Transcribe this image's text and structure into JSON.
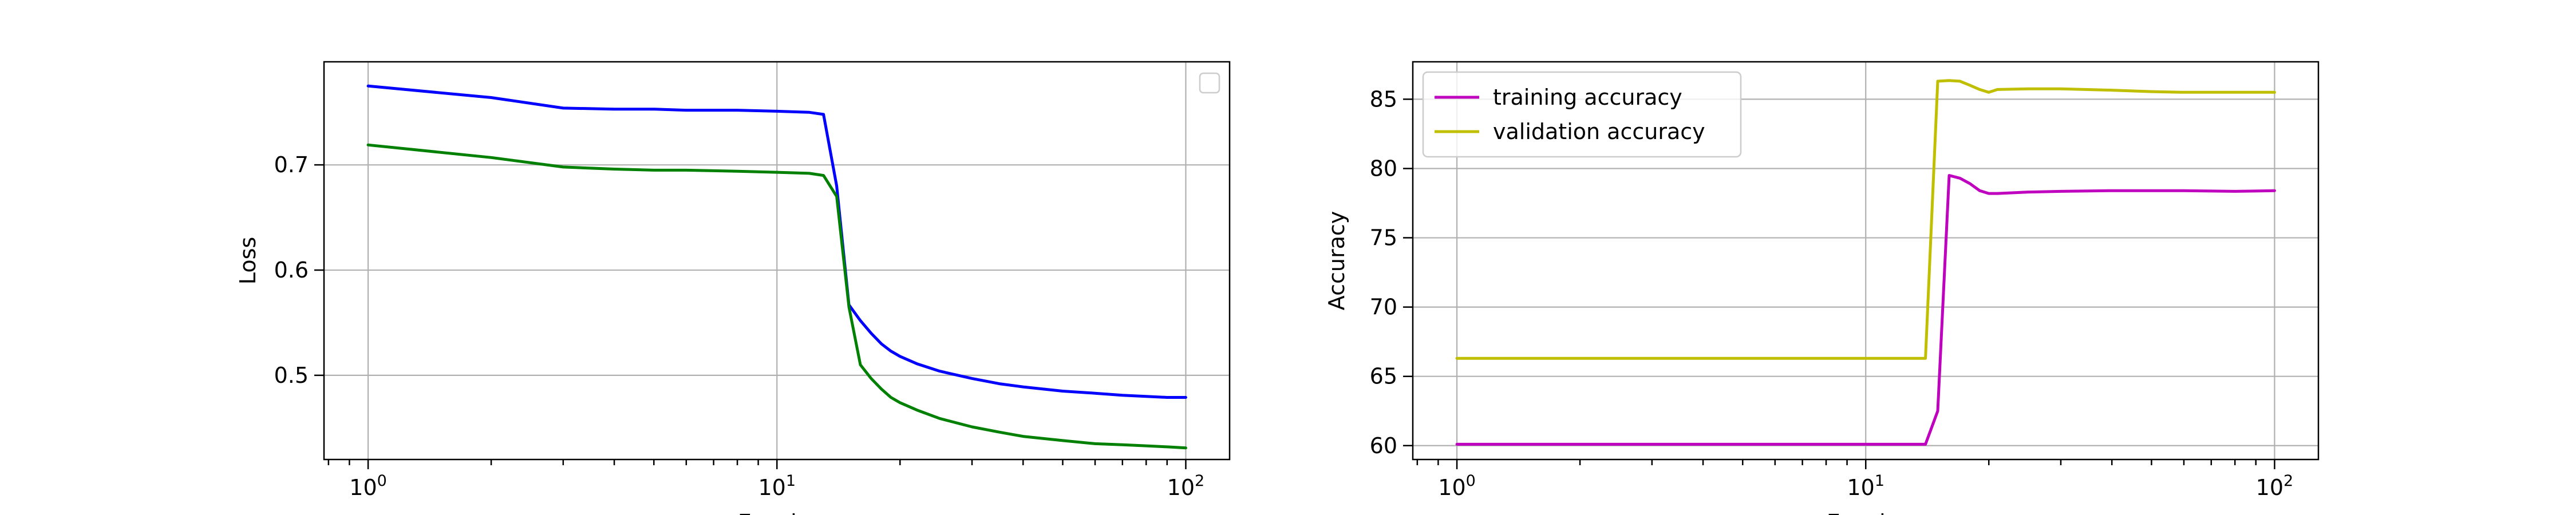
{
  "chart_data": [
    {
      "type": "line",
      "xscale": "log",
      "xlim": [
        0.78,
        128
      ],
      "ylim": [
        0.42,
        0.798
      ],
      "xticks": [
        1,
        10,
        100
      ],
      "xtick_labels": [
        {
          "base": "10",
          "exp": "0"
        },
        {
          "base": "10",
          "exp": "1"
        },
        {
          "base": "10",
          "exp": "2"
        }
      ],
      "yticks": [
        0.5,
        0.6,
        0.7
      ],
      "ytick_labels": [
        "0.5",
        "0.6",
        "0.7"
      ],
      "xlabel": "Epochs",
      "ylabel": "Loss",
      "grid": true,
      "legend": {
        "location": "upper right",
        "entries": []
      },
      "series": [
        {
          "color": "#0000ff",
          "x": [
            1,
            2,
            3,
            4,
            5,
            6,
            8,
            10,
            12,
            13,
            14,
            15,
            16,
            17,
            18,
            19,
            20,
            22,
            25,
            30,
            35,
            40,
            50,
            60,
            70,
            80,
            90,
            100
          ],
          "y": [
            0.775,
            0.764,
            0.754,
            0.753,
            0.753,
            0.752,
            0.752,
            0.751,
            0.75,
            0.748,
            0.68,
            0.567,
            0.552,
            0.54,
            0.53,
            0.523,
            0.518,
            0.511,
            0.504,
            0.497,
            0.492,
            0.489,
            0.485,
            0.483,
            0.481,
            0.48,
            0.479,
            0.479
          ]
        },
        {
          "color": "#008000",
          "x": [
            1,
            2,
            3,
            4,
            5,
            6,
            8,
            10,
            12,
            13,
            14,
            15,
            16,
            17,
            18,
            19,
            20,
            22,
            25,
            30,
            35,
            40,
            50,
            60,
            70,
            80,
            90,
            100
          ],
          "y": [
            0.719,
            0.707,
            0.698,
            0.696,
            0.695,
            0.695,
            0.694,
            0.693,
            0.692,
            0.69,
            0.67,
            0.565,
            0.51,
            0.497,
            0.487,
            0.479,
            0.474,
            0.467,
            0.459,
            0.451,
            0.446,
            0.442,
            0.438,
            0.435,
            0.434,
            0.433,
            0.432,
            0.431
          ]
        }
      ]
    },
    {
      "type": "line",
      "xscale": "log",
      "xlim": [
        0.78,
        128
      ],
      "ylim": [
        59.0,
        87.7
      ],
      "xticks": [
        1,
        10,
        100
      ],
      "xtick_labels": [
        {
          "base": "10",
          "exp": "0"
        },
        {
          "base": "10",
          "exp": "1"
        },
        {
          "base": "10",
          "exp": "2"
        }
      ],
      "yticks": [
        60,
        65,
        70,
        75,
        80,
        85
      ],
      "ytick_labels": [
        "60",
        "65",
        "70",
        "75",
        "80",
        "85"
      ],
      "xlabel": "Epochs",
      "ylabel": "Accuracy",
      "grid": true,
      "legend": {
        "location": "upper left",
        "entries": [
          {
            "label": "training accuracy",
            "color": "#bf00bf"
          },
          {
            "label": "validation accuracy",
            "color": "#bfbf00"
          }
        ]
      },
      "series": [
        {
          "name": "training accuracy",
          "color": "#bf00bf",
          "x": [
            1,
            2,
            5,
            10,
            14,
            15,
            16,
            17,
            18,
            19,
            20,
            21,
            25,
            30,
            40,
            50,
            60,
            80,
            100
          ],
          "y": [
            60.1,
            60.1,
            60.1,
            60.1,
            60.1,
            62.5,
            79.5,
            79.3,
            78.9,
            78.4,
            78.2,
            78.2,
            78.3,
            78.35,
            78.4,
            78.4,
            78.4,
            78.35,
            78.4
          ]
        },
        {
          "name": "validation accuracy",
          "color": "#bfbf00",
          "x": [
            1,
            2,
            5,
            10,
            14,
            15,
            16,
            17,
            18,
            19,
            20,
            21,
            25,
            30,
            40,
            50,
            60,
            80,
            100
          ],
          "y": [
            66.3,
            66.3,
            66.3,
            66.3,
            66.3,
            86.3,
            86.35,
            86.3,
            86.0,
            85.7,
            85.5,
            85.7,
            85.75,
            85.75,
            85.65,
            85.55,
            85.5,
            85.5,
            85.5
          ]
        }
      ]
    }
  ]
}
